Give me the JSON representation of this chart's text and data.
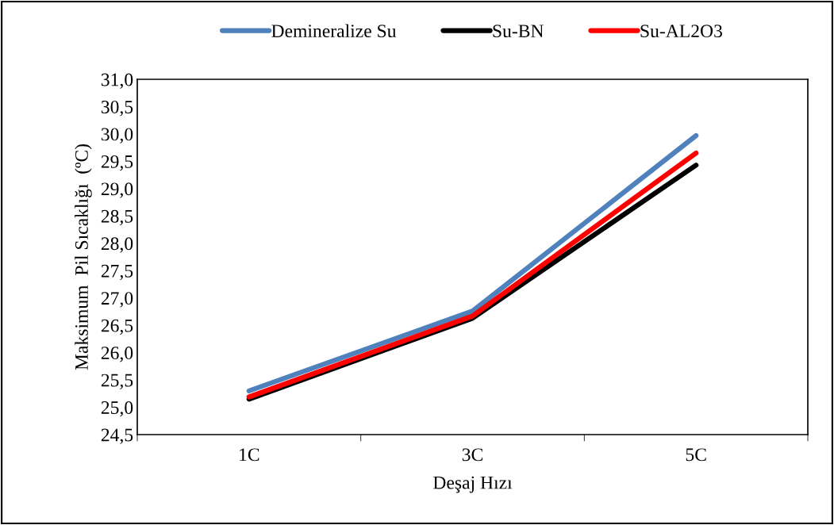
{
  "chart_data": {
    "type": "line",
    "xlabel": "Deşaj Hızı",
    "ylabel": "Maksimum  Pil Sıcaklığı  (ºC)",
    "categories": [
      "1C",
      "3C",
      "5C"
    ],
    "series": [
      {
        "name": "Demineralize Su",
        "color": "#4f81bd",
        "values": [
          25.3,
          26.76,
          29.97
        ]
      },
      {
        "name": "Su-BN",
        "color": "#000000",
        "values": [
          25.15,
          26.63,
          29.43
        ]
      },
      {
        "name": "Su-AL2O3",
        "color": "#ff0000",
        "values": [
          25.19,
          26.67,
          29.65
        ]
      }
    ],
    "ylim": [
      24.5,
      31.0
    ],
    "yticks": [
      {
        "value": 24.5,
        "label": "24,5"
      },
      {
        "value": 25.0,
        "label": "25,0"
      },
      {
        "value": 25.5,
        "label": "25,5"
      },
      {
        "value": 26.0,
        "label": "26,0"
      },
      {
        "value": 26.5,
        "label": "26,5"
      },
      {
        "value": 27.0,
        "label": "27,0"
      },
      {
        "value": 27.5,
        "label": "27,5"
      },
      {
        "value": 28.0,
        "label": "28,0"
      },
      {
        "value": 28.5,
        "label": "28,5"
      },
      {
        "value": 29.0,
        "label": "29,0"
      },
      {
        "value": 29.5,
        "label": "29,5"
      },
      {
        "value": 30.0,
        "label": "30,0"
      },
      {
        "value": 30.5,
        "label": "30,5"
      },
      {
        "value": 31.0,
        "label": "31,0"
      }
    ],
    "grid": false,
    "legend": "top",
    "marker": "none",
    "line_style": "solid"
  }
}
